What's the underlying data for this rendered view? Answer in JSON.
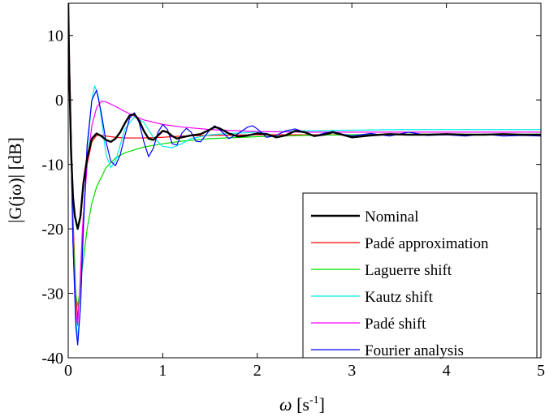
{
  "chart_data": {
    "type": "line",
    "title": "",
    "xlabel": {
      "symbol": "ω",
      "unit_base": " [s",
      "unit_exp": "-1",
      "unit_close": "]"
    },
    "ylabel": "|G(jω)| [dB]",
    "xlim": [
      0,
      5
    ],
    "ylim": [
      -40,
      15
    ],
    "xticks": [
      0,
      1,
      2,
      3,
      4,
      5
    ],
    "yticks": [
      -40,
      -30,
      -20,
      -10,
      0,
      10
    ],
    "grid": false,
    "legend_position": "bottom-right",
    "series": [
      {
        "name": "Nominal",
        "color": "#000000",
        "width": 2.4,
        "x": [
          0,
          0.01,
          0.03,
          0.05,
          0.07,
          0.1,
          0.13,
          0.16,
          0.2,
          0.25,
          0.3,
          0.35,
          0.4,
          0.45,
          0.5,
          0.55,
          0.6,
          0.65,
          0.7,
          0.75,
          0.8,
          0.85,
          0.9,
          0.95,
          1.0,
          1.05,
          1.1,
          1.15,
          1.2,
          1.3,
          1.4,
          1.5,
          1.55,
          1.6,
          1.7,
          1.8,
          1.9,
          2.0,
          2.1,
          2.2,
          2.3,
          2.4,
          2.5,
          2.6,
          2.7,
          2.8,
          2.9,
          3.0,
          3.2,
          3.4,
          3.6,
          3.8,
          4.0,
          4.2,
          4.4,
          4.6,
          4.8,
          5.0
        ],
        "y": [
          15,
          5,
          -8,
          -15,
          -18,
          -20,
          -18,
          -13,
          -9,
          -6,
          -5.2,
          -5.6,
          -6.2,
          -6.5,
          -6.0,
          -5.0,
          -3.6,
          -2.4,
          -2.2,
          -3.2,
          -4.8,
          -6.0,
          -6.2,
          -5.5,
          -4.8,
          -5.0,
          -5.6,
          -6.0,
          -5.8,
          -5.5,
          -5.3,
          -4.6,
          -4.2,
          -4.4,
          -5.2,
          -5.7,
          -5.5,
          -5.2,
          -5.3,
          -5.8,
          -5.5,
          -4.8,
          -5.0,
          -5.6,
          -5.4,
          -5.0,
          -5.4,
          -5.8,
          -5.5,
          -5.3,
          -5.4,
          -5.4,
          -5.3,
          -5.4,
          -5.4,
          -5.3,
          -5.4,
          -5.4
        ]
      },
      {
        "name": "Padé approximation",
        "color": "#ff0000",
        "width": 1.2,
        "x": [
          0,
          0.02,
          0.05,
          0.08,
          0.1,
          0.13,
          0.16,
          0.2,
          0.25,
          0.3,
          0.35,
          0.4,
          0.5,
          0.6,
          0.7,
          0.8,
          1.0,
          1.2,
          1.5,
          2.0,
          2.5,
          3.0,
          3.5,
          4.0,
          4.5,
          5.0
        ],
        "y": [
          15,
          2,
          -18,
          -30,
          -34,
          -28,
          -18,
          -10,
          -6.5,
          -5.5,
          -5.5,
          -5.6,
          -5.8,
          -5.9,
          -5.9,
          -5.9,
          -5.8,
          -5.6,
          -5.5,
          -5.4,
          -5.4,
          -5.4,
          -5.4,
          -5.4,
          -5.4,
          -5.4
        ]
      },
      {
        "name": "Laguerre shift",
        "color": "#00dd00",
        "width": 1.2,
        "x": [
          0,
          0.02,
          0.05,
          0.08,
          0.1,
          0.12,
          0.15,
          0.2,
          0.25,
          0.3,
          0.4,
          0.5,
          0.6,
          0.8,
          1.0,
          1.2,
          1.5,
          2.0,
          2.5,
          3.0,
          3.5,
          4.0,
          4.5,
          5.0
        ],
        "y": [
          15,
          0,
          -20,
          -30,
          -32,
          -30,
          -26,
          -20,
          -16,
          -13.5,
          -10.5,
          -9.0,
          -8.2,
          -7.3,
          -6.8,
          -6.4,
          -6.0,
          -5.7,
          -5.5,
          -5.4,
          -5.3,
          -5.3,
          -5.3,
          -5.3
        ]
      },
      {
        "name": "Kautz shift",
        "color": "#00eeee",
        "width": 1.2,
        "x": [
          0,
          0.02,
          0.05,
          0.08,
          0.1,
          0.13,
          0.16,
          0.2,
          0.25,
          0.28,
          0.32,
          0.36,
          0.4,
          0.45,
          0.5,
          0.55,
          0.6,
          0.7,
          0.8,
          0.9,
          1.0,
          1.1,
          1.2,
          1.3,
          1.5,
          1.7,
          2.0,
          2.5,
          3.0,
          3.5,
          4.0,
          4.5,
          5.0
        ],
        "y": [
          15,
          0,
          -22,
          -34,
          -37,
          -32,
          -20,
          -8,
          0,
          2.2,
          0.5,
          -4,
          -8.5,
          -10.5,
          -9.5,
          -7,
          -4.5,
          -2.6,
          -3.5,
          -5.8,
          -7.2,
          -7.4,
          -6.8,
          -6.0,
          -5.4,
          -5.2,
          -5.0,
          -4.8,
          -4.7,
          -4.6,
          -4.6,
          -4.6,
          -4.6
        ]
      },
      {
        "name": "Padé shift",
        "color": "#ff00ff",
        "width": 1.2,
        "x": [
          0,
          0.02,
          0.05,
          0.08,
          0.1,
          0.12,
          0.15,
          0.2,
          0.25,
          0.3,
          0.35,
          0.4,
          0.5,
          0.6,
          0.7,
          0.8,
          1.0,
          1.2,
          1.5,
          2.0,
          2.5,
          3.0,
          3.5,
          4.0,
          4.5,
          5.0
        ],
        "y": [
          15,
          0,
          -22,
          -33,
          -35,
          -30,
          -20,
          -10,
          -4,
          -1.2,
          -0.2,
          -0.3,
          -1.0,
          -1.8,
          -2.5,
          -3.1,
          -3.8,
          -4.2,
          -4.6,
          -4.9,
          -5.0,
          -5.0,
          -5.0,
          -5.0,
          -5.0,
          -5.0
        ]
      },
      {
        "name": "Fourier analysis",
        "color": "#0000ff",
        "width": 1.2,
        "x": [
          0,
          0.02,
          0.05,
          0.08,
          0.1,
          0.13,
          0.16,
          0.2,
          0.25,
          0.3,
          0.35,
          0.4,
          0.45,
          0.5,
          0.55,
          0.6,
          0.65,
          0.7,
          0.75,
          0.8,
          0.85,
          0.9,
          0.95,
          1.0,
          1.05,
          1.1,
          1.15,
          1.2,
          1.25,
          1.3,
          1.35,
          1.4,
          1.5,
          1.55,
          1.6,
          1.7,
          1.8,
          1.9,
          1.95,
          2.0,
          2.1,
          2.2,
          2.3,
          2.4,
          2.5,
          2.6,
          2.7,
          2.8,
          2.9,
          3.0,
          3.2,
          3.4,
          3.6,
          3.8,
          4.0,
          4.2,
          4.4,
          4.6,
          4.8,
          5.0
        ],
        "y": [
          15,
          0,
          -22,
          -35,
          -38,
          -32,
          -20,
          -7,
          0,
          1.5,
          -2,
          -6.5,
          -9.5,
          -10.2,
          -8.5,
          -5.5,
          -2.8,
          -2.0,
          -3.5,
          -6.5,
          -8.8,
          -7.5,
          -5.0,
          -3.8,
          -4.6,
          -6.8,
          -7.0,
          -5.2,
          -4.4,
          -5.0,
          -6.4,
          -6.5,
          -4.6,
          -4.0,
          -4.6,
          -6.0,
          -5.2,
          -4.2,
          -4.0,
          -4.5,
          -5.8,
          -5.5,
          -4.8,
          -4.5,
          -5.0,
          -5.6,
          -5.2,
          -4.9,
          -5.3,
          -5.6,
          -5.2,
          -5.6,
          -5.0,
          -5.5,
          -5.4,
          -5.6,
          -5.3,
          -5.6,
          -5.5,
          -5.6
        ]
      }
    ]
  }
}
